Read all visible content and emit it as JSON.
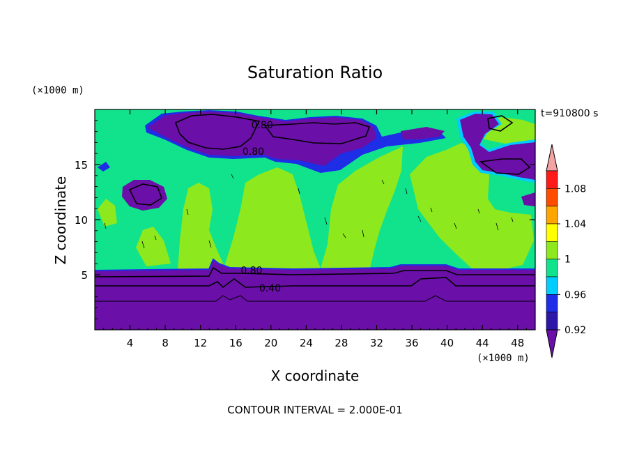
{
  "chart_data": {
    "type": "heatmap",
    "title": "Saturation Ratio",
    "xlabel": "X coordinate",
    "ylabel": "Z coordinate",
    "x_unit": "(×1000 m)",
    "y_unit": "(×1000 m)",
    "time_label": "t=910800 s",
    "footer": "CONTOUR INTERVAL = 2.000E-01",
    "xlim": [
      0,
      50
    ],
    "ylim": [
      0,
      20
    ],
    "x_ticks": [
      4,
      8,
      12,
      16,
      20,
      24,
      28,
      32,
      36,
      40,
      44,
      48
    ],
    "y_ticks": [
      5,
      10,
      15
    ],
    "contour_labels": [
      {
        "text": "0.80",
        "x": 19.0,
        "z": 18.6
      },
      {
        "text": "0.80",
        "x": 18.0,
        "z": 16.2
      },
      {
        "text": "0.80",
        "x": 17.8,
        "z": 5.4
      },
      {
        "text": "0.40",
        "x": 19.9,
        "z": 3.8
      }
    ],
    "colorbar": {
      "levels": [
        "0.90",
        "0.92",
        "0.94",
        "0.96",
        "0.98",
        "1",
        "1.02",
        "1.04",
        "1.06",
        "1.08",
        "1.10"
      ],
      "tick_labels": [
        "1.08",
        "1.04",
        "1",
        "0.96",
        "0.92"
      ],
      "colors": [
        "#6a0fa8",
        "#2c17a8",
        "#1e2de6",
        "#00cdff",
        "#10e38c",
        "#8de81e",
        "#ffff00",
        "#ffa500",
        "#ff4d00",
        "#ff1a1a",
        "#f4a3a3"
      ]
    },
    "regions": {
      "dry_layer_top_z": 5.3,
      "fill_background": "#10e38c",
      "fill_saturated": "#8de81e",
      "fill_dry": "#6a0fa8"
    }
  }
}
